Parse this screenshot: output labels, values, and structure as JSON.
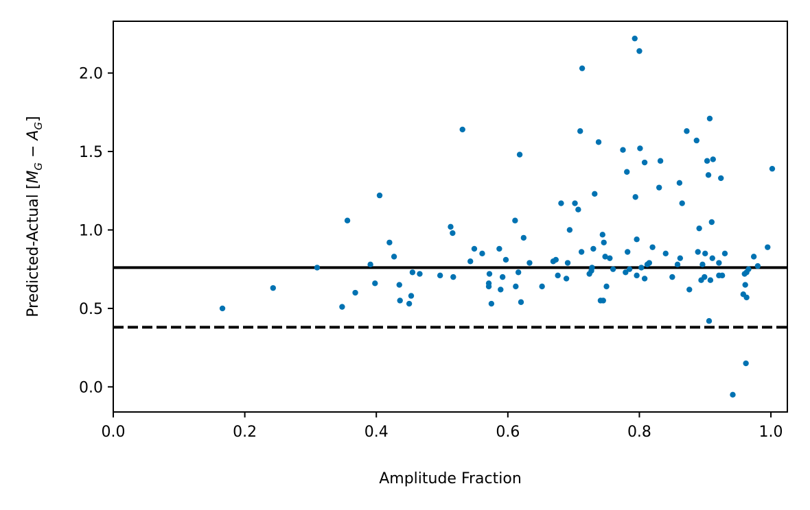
{
  "chart_data": {
    "type": "scatter",
    "title": "",
    "xlabel": "Amplitude Fraction",
    "ylabel": {
      "prefix": "Predicted-Actual [",
      "m": "M",
      "m_sub": "G",
      "minus": " − ",
      "a": "A",
      "a_sub": "G",
      "suffix": "]"
    },
    "xlim": [
      0.0,
      1.025
    ],
    "ylim": [
      -0.16,
      2.33
    ],
    "xticks": [
      0.0,
      0.2,
      0.4,
      0.6,
      0.8,
      1.0
    ],
    "xtick_labels": [
      "0.0",
      "0.2",
      "0.4",
      "0.6",
      "0.8",
      "1.0"
    ],
    "yticks": [
      0.0,
      0.5,
      1.0,
      1.5,
      2.0
    ],
    "ytick_labels": [
      "0.0",
      "0.5",
      "1.0",
      "1.5",
      "2.0"
    ],
    "grid": false,
    "point_color": "#0072b2",
    "reference_lines": [
      {
        "y": 0.76,
        "style": "solid",
        "color": "#000000"
      },
      {
        "y": 0.38,
        "style": "dashed",
        "color": "#000000"
      }
    ],
    "points": [
      [
        0.166,
        0.5
      ],
      [
        0.243,
        0.63
      ],
      [
        0.31,
        0.76
      ],
      [
        0.348,
        0.51
      ],
      [
        0.356,
        1.06
      ],
      [
        0.368,
        0.6
      ],
      [
        0.391,
        0.78
      ],
      [
        0.398,
        0.66
      ],
      [
        0.405,
        1.22
      ],
      [
        0.42,
        0.92
      ],
      [
        0.427,
        0.83
      ],
      [
        0.435,
        0.65
      ],
      [
        0.436,
        0.55
      ],
      [
        0.45,
        0.53
      ],
      [
        0.453,
        0.58
      ],
      [
        0.455,
        0.73
      ],
      [
        0.466,
        0.72
      ],
      [
        0.497,
        0.71
      ],
      [
        0.513,
        1.02
      ],
      [
        0.516,
        0.98
      ],
      [
        0.517,
        0.7
      ],
      [
        0.531,
        1.64
      ],
      [
        0.543,
        0.8
      ],
      [
        0.549,
        0.88
      ],
      [
        0.561,
        0.85
      ],
      [
        0.571,
        0.66
      ],
      [
        0.572,
        0.72
      ],
      [
        0.571,
        0.64
      ],
      [
        0.575,
        0.53
      ],
      [
        0.587,
        0.88
      ],
      [
        0.589,
        0.62
      ],
      [
        0.592,
        0.7
      ],
      [
        0.597,
        0.81
      ],
      [
        0.611,
        1.06
      ],
      [
        0.612,
        0.64
      ],
      [
        0.616,
        0.73
      ],
      [
        0.618,
        1.48
      ],
      [
        0.62,
        0.54
      ],
      [
        0.624,
        0.95
      ],
      [
        0.633,
        0.79
      ],
      [
        0.652,
        0.64
      ],
      [
        0.669,
        0.8
      ],
      [
        0.673,
        0.81
      ],
      [
        0.676,
        0.71
      ],
      [
        0.681,
        1.17
      ],
      [
        0.689,
        0.69
      ],
      [
        0.691,
        0.79
      ],
      [
        0.694,
        1.0
      ],
      [
        0.702,
        1.17
      ],
      [
        0.707,
        1.13
      ],
      [
        0.71,
        1.63
      ],
      [
        0.712,
        0.86
      ],
      [
        0.713,
        2.03
      ],
      [
        0.724,
        0.72
      ],
      [
        0.727,
        0.74
      ],
      [
        0.728,
        0.76
      ],
      [
        0.73,
        0.88
      ],
      [
        0.732,
        1.23
      ],
      [
        0.738,
        1.56
      ],
      [
        0.741,
        0.55
      ],
      [
        0.744,
        0.97
      ],
      [
        0.745,
        0.55
      ],
      [
        0.746,
        0.92
      ],
      [
        0.748,
        0.83
      ],
      [
        0.75,
        0.64
      ],
      [
        0.755,
        0.82
      ],
      [
        0.76,
        0.75
      ],
      [
        0.775,
        1.51
      ],
      [
        0.779,
        0.73
      ],
      [
        0.781,
        1.37
      ],
      [
        0.782,
        0.86
      ],
      [
        0.785,
        0.75
      ],
      [
        0.793,
        2.22
      ],
      [
        0.794,
        1.21
      ],
      [
        0.796,
        0.71
      ],
      [
        0.796,
        0.94
      ],
      [
        0.8,
        2.14
      ],
      [
        0.801,
        1.52
      ],
      [
        0.803,
        0.76
      ],
      [
        0.808,
        1.43
      ],
      [
        0.808,
        0.69
      ],
      [
        0.812,
        0.78
      ],
      [
        0.815,
        0.79
      ],
      [
        0.82,
        0.89
      ],
      [
        0.83,
        1.27
      ],
      [
        0.832,
        1.44
      ],
      [
        0.84,
        0.85
      ],
      [
        0.85,
        0.7
      ],
      [
        0.858,
        0.78
      ],
      [
        0.861,
        1.3
      ],
      [
        0.862,
        0.82
      ],
      [
        0.865,
        1.17
      ],
      [
        0.872,
        1.63
      ],
      [
        0.876,
        0.62
      ],
      [
        0.887,
        1.57
      ],
      [
        0.889,
        0.86
      ],
      [
        0.891,
        1.01
      ],
      [
        0.894,
        0.68
      ],
      [
        0.896,
        0.78
      ],
      [
        0.899,
        0.7
      ],
      [
        0.9,
        0.85
      ],
      [
        0.903,
        1.44
      ],
      [
        0.905,
        1.35
      ],
      [
        0.906,
        0.42
      ],
      [
        0.907,
        1.71
      ],
      [
        0.908,
        0.68
      ],
      [
        0.91,
        1.05
      ],
      [
        0.911,
        0.82
      ],
      [
        0.912,
        1.45
      ],
      [
        0.921,
        0.79
      ],
      [
        0.921,
        0.71
      ],
      [
        0.924,
        1.33
      ],
      [
        0.926,
        0.71
      ],
      [
        0.93,
        0.85
      ],
      [
        0.942,
        -0.05
      ],
      [
        0.958,
        0.59
      ],
      [
        0.96,
        0.72
      ],
      [
        0.961,
        0.65
      ],
      [
        0.962,
        0.15
      ],
      [
        0.963,
        0.57
      ],
      [
        0.963,
        0.73
      ],
      [
        0.966,
        0.75
      ],
      [
        0.974,
        0.83
      ],
      [
        0.98,
        0.77
      ],
      [
        0.995,
        0.89
      ],
      [
        1.002,
        1.39
      ]
    ]
  }
}
